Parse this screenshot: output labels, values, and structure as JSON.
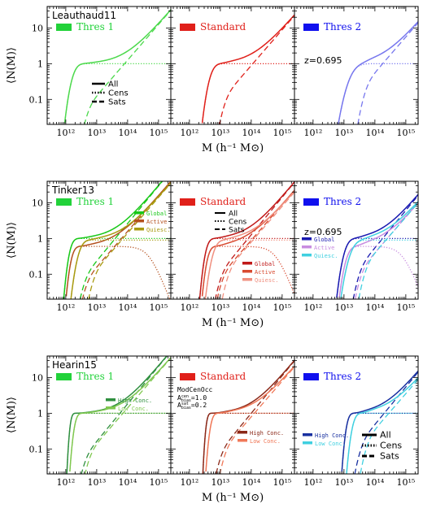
{
  "chart_data": {
    "type": "line",
    "x_scale": "log",
    "y_scale": "log",
    "xlim": [
      250000000000.0,
      2500000000000000.0
    ],
    "ylim": [
      0.02,
      40
    ],
    "xlabel": "M (h⁻¹ M⊙)",
    "ylabel": "⟨N(M)⟩",
    "x_tick_labels": [
      "10¹²",
      "10¹³",
      "10¹⁴",
      "10¹⁵"
    ],
    "y_tick_labels": [
      "0.1",
      "1",
      "10"
    ],
    "threshold_labels": [
      "Thres 1",
      "Standard",
      "Thres 2"
    ],
    "threshold_colors": [
      "#22d23a",
      "#e0201a",
      "#1010ee"
    ],
    "redshift_label": "z=0.695",
    "component_legend": [
      "All",
      "Cens",
      "Sats"
    ],
    "rows": [
      {
        "model": "Leauthaud11",
        "legend_panel": 0,
        "panels": [
          {
            "threshold": "Thres 1",
            "curves": [
              {
                "name": "Thres 1",
                "color": "#4cd94c",
                "logMmin": 12.25,
                "sigma": 0.2,
                "M1": 13.9,
                "alpha": 1.0,
                "cens_max": 1.0
              }
            ]
          },
          {
            "threshold": "Standard",
            "curves": [
              {
                "name": "Standard",
                "color": "#e0201a",
                "logMmin": 12.7,
                "sigma": 0.2,
                "M1": 14.05,
                "alpha": 1.0,
                "cens_max": 1.0
              }
            ]
          },
          {
            "threshold": "Thres 2",
            "curves": [
              {
                "name": "Thres 2",
                "color": "#7777ee",
                "logMmin": 13.25,
                "sigma": 0.3,
                "M1": 14.25,
                "alpha": 1.0,
                "cens_max": 1.0
              }
            ]
          }
        ]
      },
      {
        "model": "Tinker13",
        "legend_panel": 1,
        "sublegend": [
          "Global",
          "Active",
          "Quiesc."
        ],
        "panels": [
          {
            "threshold": "Thres 1",
            "curves": [
              {
                "name": "Global",
                "color": "#18c818",
                "logMmin": 12.15,
                "sigma": 0.15,
                "M1": 13.6,
                "alpha": 1.05,
                "cens_max": 1.0
              },
              {
                "name": "Active",
                "color": "#b4501e",
                "logMmin": 12.2,
                "sigma": 0.15,
                "M1": 13.8,
                "alpha": 1.0,
                "cens_max": 0.6,
                "cens_decline": 14.7
              },
              {
                "name": "Quiesc.",
                "color": "#a89a10",
                "logMmin": 12.45,
                "sigma": 0.2,
                "M1": 13.85,
                "alpha": 1.0,
                "cens_max": 0.9
              }
            ]
          },
          {
            "threshold": "Standard",
            "curves": [
              {
                "name": "Global",
                "color": "#c01818",
                "logMmin": 12.55,
                "sigma": 0.15,
                "M1": 13.9,
                "alpha": 1.05,
                "cens_max": 1.0
              },
              {
                "name": "Active",
                "color": "#d84a30",
                "logMmin": 12.6,
                "sigma": 0.15,
                "M1": 14.05,
                "alpha": 1.0,
                "cens_max": 0.6,
                "cens_decline": 14.8
              },
              {
                "name": "Quiesc.",
                "color": "#f09080",
                "logMmin": 12.8,
                "sigma": 0.2,
                "M1": 14.1,
                "alpha": 1.0,
                "cens_max": 0.9
              }
            ]
          },
          {
            "threshold": "Thres 2",
            "curves": [
              {
                "name": "Global",
                "color": "#1818b0",
                "logMmin": 13.05,
                "sigma": 0.2,
                "M1": 14.25,
                "alpha": 1.05,
                "cens_max": 1.0
              },
              {
                "name": "Active",
                "color": "#c88ce0",
                "logMmin": 13.1,
                "sigma": 0.2,
                "M1": 14.4,
                "alpha": 1.0,
                "cens_max": 0.6,
                "cens_decline": 14.9
              },
              {
                "name": "Quiesc.",
                "color": "#40d0e0",
                "logMmin": 13.25,
                "sigma": 0.25,
                "M1": 14.4,
                "alpha": 1.0,
                "cens_max": 0.9
              }
            ]
          }
        ]
      },
      {
        "model": "Hearin15",
        "legend_panel": 2,
        "sublegend": [
          "High Conc.",
          "Low Conc."
        ],
        "annotation": [
          "ModCenOcc",
          "A_bias^cen=1.0",
          "A_bias^sat=0.2"
        ],
        "panels": [
          {
            "threshold": "Thres 1",
            "curves": [
              {
                "name": "High Conc.",
                "color": "#2f8f3f",
                "logMmin": 12.15,
                "sigma": 0.08,
                "M1": 13.75,
                "alpha": 1.05,
                "cens_max": 1.0
              },
              {
                "name": "Low Conc.",
                "color": "#80c850",
                "logMmin": 12.3,
                "sigma": 0.12,
                "M1": 13.85,
                "alpha": 1.0,
                "cens_max": 1.0
              }
            ]
          },
          {
            "threshold": "Standard",
            "curves": [
              {
                "name": "High Conc.",
                "color": "#8b2818",
                "logMmin": 12.55,
                "sigma": 0.08,
                "M1": 14.0,
                "alpha": 1.05,
                "cens_max": 1.0
              },
              {
                "name": "Low Conc.",
                "color": "#f07858",
                "logMmin": 12.7,
                "sigma": 0.12,
                "M1": 14.1,
                "alpha": 1.0,
                "cens_max": 1.0
              }
            ]
          },
          {
            "threshold": "Thres 2",
            "curves": [
              {
                "name": "High Conc.",
                "color": "#1830a0",
                "logMmin": 13.1,
                "sigma": 0.12,
                "M1": 14.3,
                "alpha": 1.05,
                "cens_max": 1.0
              },
              {
                "name": "Low Conc.",
                "color": "#40d0e0",
                "logMmin": 13.3,
                "sigma": 0.15,
                "M1": 14.45,
                "alpha": 1.0,
                "cens_max": 1.0
              }
            ]
          }
        ]
      }
    ]
  }
}
